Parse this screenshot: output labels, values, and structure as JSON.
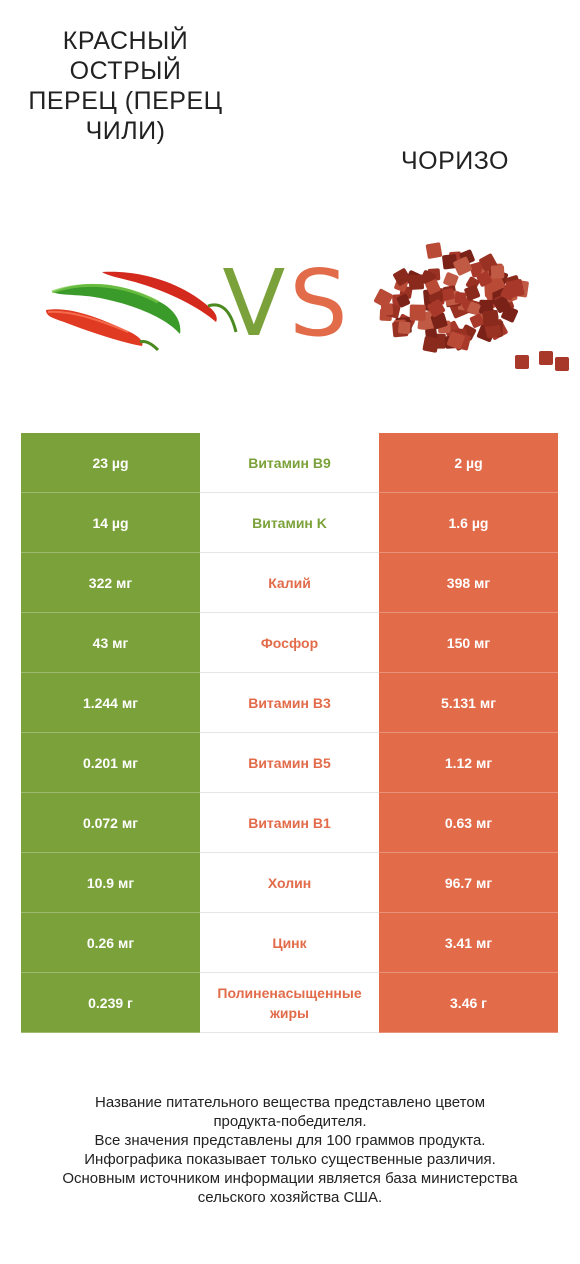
{
  "header": {
    "left_title": "КРАСНЫЙ ОСТРЫЙ ПЕРЕЦ (ПЕРЕЦ ЧИЛИ)",
    "right_title": "ЧОРИЗО",
    "vs_v": "V",
    "vs_s": "S"
  },
  "colors": {
    "winner_left": "#7ba23a",
    "winner_right": "#e26b4a"
  },
  "rows": [
    {
      "left": "23 µg",
      "nutrient": "Витамин B9",
      "right": "2 µg",
      "winner": "left"
    },
    {
      "left": "14 µg",
      "nutrient": "Витамин K",
      "right": "1.6 µg",
      "winner": "left"
    },
    {
      "left": "322 мг",
      "nutrient": "Калий",
      "right": "398 мг",
      "winner": "right"
    },
    {
      "left": "43 мг",
      "nutrient": "Фосфор",
      "right": "150 мг",
      "winner": "right"
    },
    {
      "left": "1.244 мг",
      "nutrient": "Витамин B3",
      "right": "5.131 мг",
      "winner": "right"
    },
    {
      "left": "0.201 мг",
      "nutrient": "Витамин B5",
      "right": "1.12 мг",
      "winner": "right"
    },
    {
      "left": "0.072 мг",
      "nutrient": "Витамин B1",
      "right": "0.63 мг",
      "winner": "right"
    },
    {
      "left": "10.9 мг",
      "nutrient": "Холин",
      "right": "96.7 мг",
      "winner": "right"
    },
    {
      "left": "0.26 мг",
      "nutrient": "Цинк",
      "right": "3.41 мг",
      "winner": "right"
    },
    {
      "left": "0.239 г",
      "nutrient": "Полиненасыщенные жиры",
      "right": "3.46 г",
      "winner": "right"
    }
  ],
  "footer": {
    "line1": "Название питательного вещества представлено цветом",
    "line2": "продукта-победителя.",
    "line3": "Все значения представлены для 100 граммов продукта.",
    "line4": "Инфографика показывает только существенные различия.",
    "line5": "Основным источником информации является база министерства",
    "line6": "сельского хозяйства США."
  }
}
